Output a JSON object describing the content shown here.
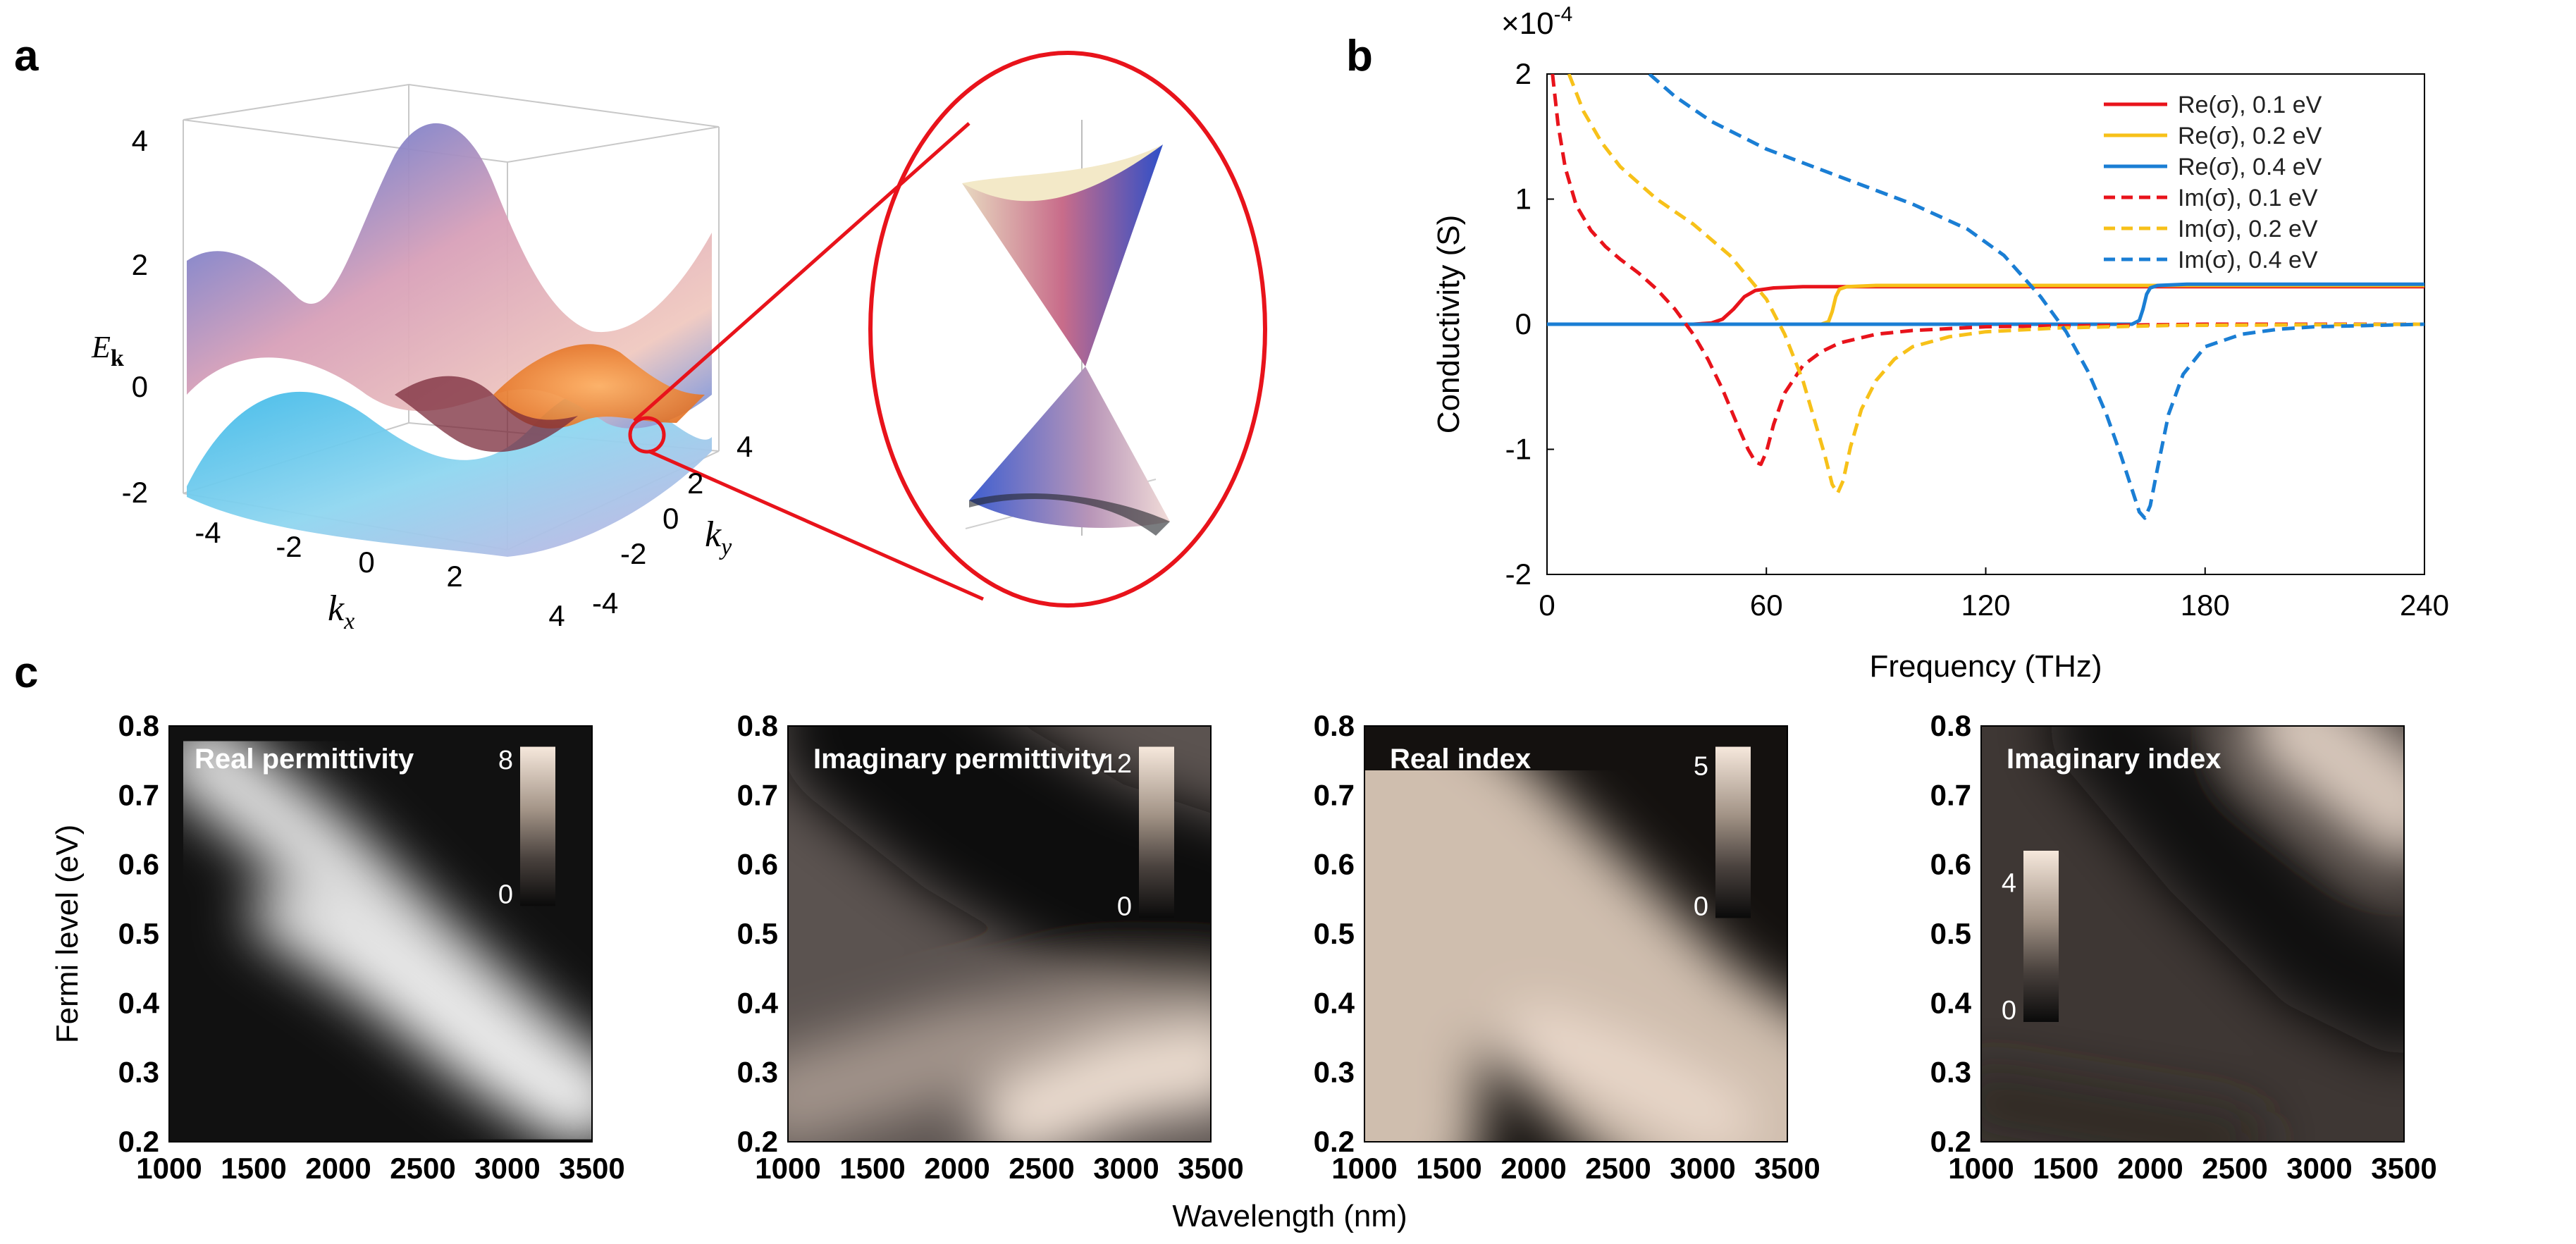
{
  "panels": {
    "a": {
      "label": "a",
      "z_axis_label": "E",
      "z_axis_sub": "k",
      "z_ticks": [
        "4",
        "2",
        "0",
        "-2"
      ],
      "x_axis_label": "k",
      "x_axis_sub": "x",
      "x_ticks": [
        "-4",
        "-2",
        "0",
        "2",
        "4"
      ],
      "y_axis_label": "k",
      "y_axis_sub": "y",
      "y_ticks": [
        "4",
        "2",
        "0",
        "-2",
        "-4"
      ]
    },
    "b": {
      "label": "b",
      "exponent": "×10",
      "exponent_power": "-4"
    },
    "c": {
      "label": "c",
      "shared_xlabel": "Wavelength (nm)"
    }
  },
  "colors": {
    "red": "#e8131b",
    "yellow": "#f7c119",
    "blue": "#1a7ed4",
    "circle": "#e8131b"
  },
  "chart_data": [
    {
      "id": "conductivity",
      "type": "line",
      "title": "",
      "xlabel": "Frequency (THz)",
      "ylabel": "Conductivity (S)",
      "xlim": [
        0,
        240
      ],
      "ylim": [
        -2,
        2
      ],
      "y_multiplier": "×10^-4",
      "xticks": [
        0,
        60,
        120,
        180,
        240
      ],
      "yticks": [
        -2,
        -1,
        0,
        1,
        2
      ],
      "legend_position": "top-right",
      "series": [
        {
          "name": "Re(σ), 0.1 eV",
          "color": "#e8131b",
          "style": "solid",
          "x": [
            0,
            40,
            45,
            48,
            51,
            54,
            57,
            62,
            70,
            80,
            120,
            240
          ],
          "y": [
            0,
            0,
            0.01,
            0.04,
            0.12,
            0.22,
            0.27,
            0.29,
            0.3,
            0.3,
            0.3,
            0.3
          ]
        },
        {
          "name": "Re(σ), 0.2 eV",
          "color": "#f7c119",
          "style": "solid",
          "x": [
            0,
            75,
            77,
            78,
            79,
            80,
            82,
            90,
            120,
            240
          ],
          "y": [
            0,
            0,
            0.02,
            0.1,
            0.22,
            0.28,
            0.3,
            0.31,
            0.31,
            0.31
          ]
        },
        {
          "name": "Re(σ), 0.4 eV",
          "color": "#1a7ed4",
          "style": "solid",
          "x": [
            0,
            160,
            162,
            163,
            164,
            165,
            167,
            175,
            240
          ],
          "y": [
            0,
            0,
            0.03,
            0.12,
            0.24,
            0.29,
            0.31,
            0.32,
            0.32
          ]
        },
        {
          "name": "Im(σ), 0.1 eV",
          "color": "#e8131b",
          "style": "dashed",
          "x": [
            1.5,
            3,
            5,
            8,
            12,
            16,
            20,
            25,
            30,
            35,
            40,
            44,
            48,
            52,
            55,
            57,
            58.5,
            60,
            62,
            65,
            70,
            75,
            80,
            90,
            100,
            120,
            150,
            180,
            240
          ],
          "y": [
            2.0,
            1.6,
            1.25,
            0.95,
            0.75,
            0.62,
            0.52,
            0.41,
            0.28,
            0.12,
            -0.08,
            -0.28,
            -0.52,
            -0.8,
            -1.0,
            -1.1,
            -1.12,
            -1.02,
            -0.8,
            -0.55,
            -0.33,
            -0.22,
            -0.15,
            -0.08,
            -0.05,
            -0.02,
            -0.01,
            0,
            0
          ]
        },
        {
          "name": "Im(σ), 0.2 eV",
          "color": "#f7c119",
          "style": "dashed",
          "x": [
            6,
            10,
            15,
            20,
            30,
            40,
            50,
            60,
            65,
            70,
            73,
            76,
            78,
            79.5,
            81,
            83,
            86,
            90,
            95,
            100,
            110,
            120,
            140,
            170,
            240
          ],
          "y": [
            2.0,
            1.7,
            1.45,
            1.26,
            1.0,
            0.8,
            0.55,
            0.2,
            -0.08,
            -0.45,
            -0.75,
            -1.05,
            -1.28,
            -1.35,
            -1.25,
            -0.98,
            -0.68,
            -0.45,
            -0.28,
            -0.18,
            -0.1,
            -0.06,
            -0.03,
            -0.01,
            0
          ]
        },
        {
          "name": "Im(σ), 0.4 eV",
          "color": "#1a7ed4",
          "style": "dashed",
          "x": [
            28,
            35,
            45,
            60,
            80,
            100,
            115,
            125,
            135,
            142,
            148,
            153,
            157,
            160,
            162,
            163.5,
            165,
            167,
            170,
            174,
            180,
            190,
            200,
            210,
            225,
            240
          ],
          "y": [
            2.0,
            1.82,
            1.62,
            1.4,
            1.18,
            0.96,
            0.76,
            0.55,
            0.22,
            -0.06,
            -0.38,
            -0.72,
            -1.05,
            -1.32,
            -1.5,
            -1.55,
            -1.45,
            -1.15,
            -0.72,
            -0.4,
            -0.18,
            -0.08,
            -0.04,
            -0.02,
            -0.01,
            0
          ]
        }
      ]
    },
    {
      "id": "real-permittivity",
      "type": "heatmap",
      "title": "Real permittivity",
      "xlabel": "Wavelength (nm)",
      "ylabel": "Fermi level (eV)",
      "xlim": [
        1000,
        3500
      ],
      "ylim": [
        0.2,
        0.8
      ],
      "xticks": [
        1000,
        1500,
        2000,
        2500,
        3000,
        3500
      ],
      "yticks": [
        0.2,
        0.3,
        0.4,
        0.5,
        0.6,
        0.7,
        0.8
      ],
      "colorbar": {
        "min": 0,
        "max": 8.5,
        "ticks": [
          0,
          8
        ],
        "colors": [
          "#0a0a0a",
          "#f6e8dc"
        ]
      }
    },
    {
      "id": "imaginary-permittivity",
      "type": "heatmap",
      "title": "Imaginary permittivity",
      "xlabel": "Wavelength (nm)",
      "ylabel": "",
      "xlim": [
        1000,
        3500
      ],
      "ylim": [
        0.2,
        0.8
      ],
      "xticks": [
        1000,
        1500,
        2000,
        2500,
        3000,
        3500
      ],
      "yticks": [
        0.2,
        0.3,
        0.4,
        0.5,
        0.6,
        0.7,
        0.8
      ],
      "colorbar": {
        "min": 0,
        "max": 13,
        "ticks": [
          0,
          12
        ],
        "colors": [
          "#0a0a0a",
          "#f6e8dc"
        ]
      }
    },
    {
      "id": "real-index",
      "type": "heatmap",
      "title": "Real index",
      "xlabel": "Wavelength (nm)",
      "ylabel": "",
      "xlim": [
        1000,
        3500
      ],
      "ylim": [
        0.2,
        0.8
      ],
      "xticks": [
        1000,
        1500,
        2000,
        2500,
        3000,
        3500
      ],
      "yticks": [
        0.2,
        0.3,
        0.4,
        0.5,
        0.6,
        0.7,
        0.8
      ],
      "colorbar": {
        "min": 0,
        "max": 5.5,
        "ticks": [
          0,
          5
        ],
        "colors": [
          "#0a0a0a",
          "#f6e8dc"
        ]
      }
    },
    {
      "id": "imaginary-index",
      "type": "heatmap",
      "title": "Imaginary index",
      "xlabel": "Wavelength (nm)",
      "ylabel": "",
      "xlim": [
        1000,
        3500
      ],
      "ylim": [
        0.2,
        0.8
      ],
      "xticks": [
        1000,
        1500,
        2000,
        2500,
        3000,
        3500
      ],
      "yticks": [
        0.2,
        0.3,
        0.4,
        0.5,
        0.6,
        0.7,
        0.8
      ],
      "colorbar": {
        "min": 0,
        "max": 4.8,
        "ticks": [
          0,
          4
        ],
        "colors": [
          "#0a0a0a",
          "#f6e8dc"
        ]
      }
    }
  ]
}
